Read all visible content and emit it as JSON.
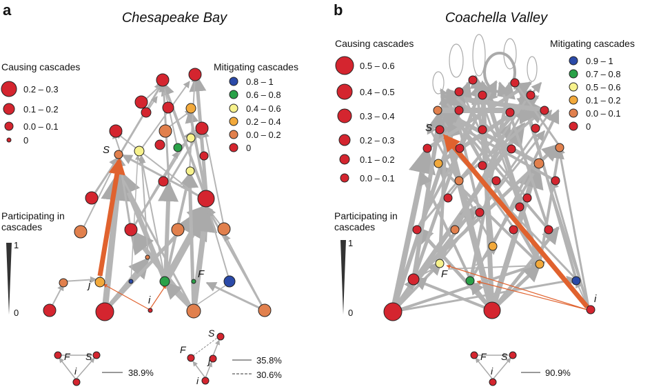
{
  "panels": [
    {
      "letter": "a",
      "title": "Chesapeake Bay",
      "causing_title": "Causing cascades",
      "causing_items": [
        "0.2 – 0.3",
        "0.1 – 0.2",
        "0.0 – 0.1",
        "0"
      ],
      "mitigating_title": "Mitigating cascades",
      "mitigating_items": [
        {
          "label": "0.8 – 1",
          "color": "#2b4aa8"
        },
        {
          "label": "0.6 – 0.8",
          "color": "#2aa148"
        },
        {
          "label": "0.4 – 0.6",
          "color": "#f7f28c"
        },
        {
          "label": "0.2 – 0.4",
          "color": "#f2a93b"
        },
        {
          "label": "0.0 – 0.2",
          "color": "#e1804d"
        },
        {
          "label": "0",
          "color": "#d4252f"
        }
      ],
      "participating_title": "Participating in cascades",
      "participating_max": "1",
      "participating_min": "0",
      "node_labels": {
        "s": "S",
        "j": "j",
        "f": "F",
        "i": "i"
      },
      "motifs": [
        {
          "labels": [
            "F",
            "S",
            "i"
          ],
          "line_pct": "38.9%"
        },
        {
          "labels": [
            "F",
            "S",
            "j",
            "i"
          ],
          "solid_pct": "35.8%",
          "dashed_pct": "30.6%"
        }
      ]
    },
    {
      "letter": "b",
      "title": "Coachella Valley",
      "causing_title": "Causing cascades",
      "causing_items": [
        "0.5 – 0.6",
        "0.4 – 0.5",
        "0.3 – 0.4",
        "0.2 – 0.3",
        "0.1 – 0.2",
        "0.0 – 0.1"
      ],
      "mitigating_title": "Mitigating cascades",
      "mitigating_items": [
        {
          "label": "0.9 – 1",
          "color": "#2b4aa8"
        },
        {
          "label": "0.7 – 0.8",
          "color": "#2aa148"
        },
        {
          "label": "0.5 – 0.6",
          "color": "#f7f28c"
        },
        {
          "label": "0.1 – 0.2",
          "color": "#f2a93b"
        },
        {
          "label": "0.0 – 0.1",
          "color": "#e1804d"
        },
        {
          "label": "0",
          "color": "#d4252f"
        }
      ],
      "participating_title": "Participating in cascades",
      "participating_max": "1",
      "participating_min": "0",
      "node_labels": {
        "s": "S",
        "f": "F",
        "i": "i"
      },
      "motifs": [
        {
          "labels": [
            "F",
            "S",
            "i"
          ],
          "line_pct": "90.9%"
        }
      ]
    }
  ],
  "colors": {
    "red": "#d4252f",
    "dark_orange": "#e1804d",
    "orange": "#f2a93b",
    "yellow": "#f7f28c",
    "green": "#2aa148",
    "blue": "#2b4aa8",
    "edge_gray": "#b3b3b3",
    "highlight_edge": "#e0622e"
  }
}
